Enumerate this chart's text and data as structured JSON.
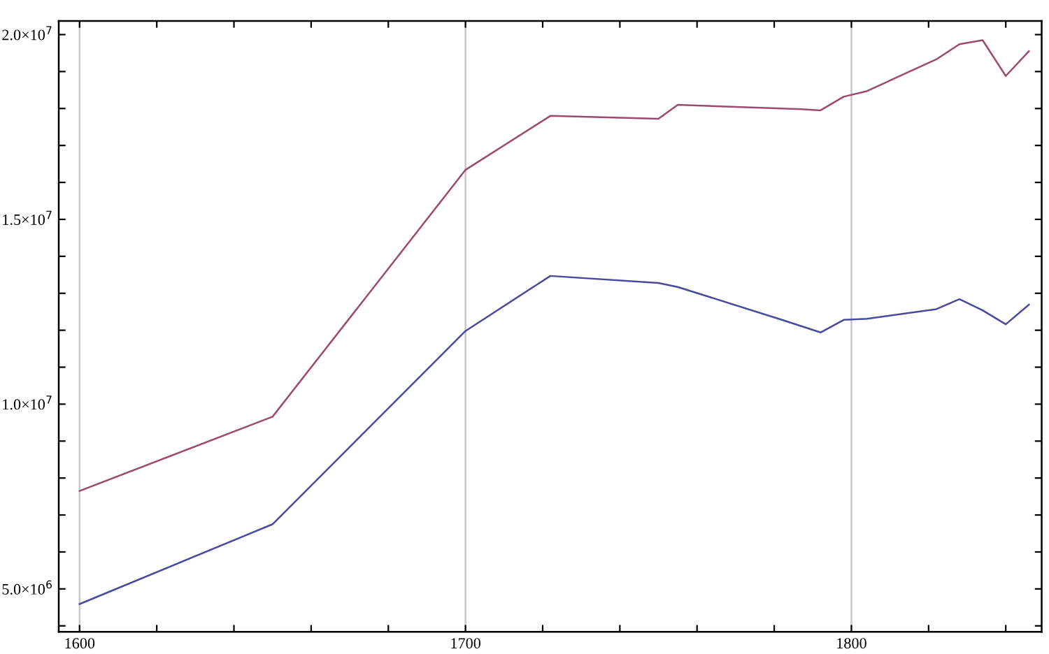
{
  "chart_data": {
    "type": "line",
    "xlim": [
      1594.6,
      1849.3
    ],
    "ylim": [
      3840000,
      20370000
    ],
    "xticks": [
      1600,
      {
        "value": 1620,
        "label": null
      },
      {
        "value": 1640,
        "label": null
      },
      {
        "value": 1660,
        "label": null
      },
      {
        "value": 1680,
        "label": null
      },
      1700,
      {
        "value": 1720,
        "label": null
      },
      {
        "value": 1740,
        "label": null
      },
      {
        "value": 1760,
        "label": null
      },
      {
        "value": 1780,
        "label": null
      },
      1800,
      {
        "value": 1820,
        "label": null
      },
      {
        "value": 1840,
        "label": null
      }
    ],
    "yticks": [
      {
        "value": 4000000,
        "label": null
      },
      {
        "value": 5000000,
        "label": "5.0×10$^{6}$"
      },
      {
        "value": 6000000,
        "label": null
      },
      {
        "value": 7000000,
        "label": null
      },
      {
        "value": 8000000,
        "label": null
      },
      {
        "value": 9000000,
        "label": null
      },
      {
        "value": 10000000,
        "label": "1.0×10$^{7}$"
      },
      {
        "value": 11000000,
        "label": null
      },
      {
        "value": 12000000,
        "label": null
      },
      {
        "value": 13000000,
        "label": null
      },
      {
        "value": 14000000,
        "label": null
      },
      {
        "value": 15000000,
        "label": "1.5×10$^{7}$"
      },
      {
        "value": 16000000,
        "label": null
      },
      {
        "value": 17000000,
        "label": null
      },
      {
        "value": 18000000,
        "label": null
      },
      {
        "value": 19000000,
        "label": null
      },
      {
        "value": 20000000,
        "label": "2.0×10$^{7}$"
      }
    ],
    "grid": "x",
    "series": [
      {
        "color": "#9c4a6e",
        "x": [
          1600,
          1650,
          1700,
          1722,
          1750,
          1755,
          1787,
          1792,
          1798,
          1804,
          1822,
          1828,
          1834,
          1840,
          1846
        ],
        "values": [
          7650000,
          9660000,
          16340000,
          17800000,
          17720000,
          18100000,
          17980000,
          17950000,
          18320000,
          18470000,
          19330000,
          19740000,
          19850000,
          18880000,
          19550000
        ]
      },
      {
        "color": "#4a4a9c",
        "x": [
          1600,
          1650,
          1700,
          1722,
          1750,
          1755,
          1782,
          1792,
          1798,
          1804,
          1822,
          1828,
          1834,
          1840,
          1846
        ],
        "values": [
          4590000,
          6750000,
          11980000,
          13470000,
          13280000,
          13170000,
          12280000,
          11940000,
          12280000,
          12310000,
          12570000,
          12840000,
          12540000,
          12160000,
          12690000
        ]
      }
    ]
  }
}
